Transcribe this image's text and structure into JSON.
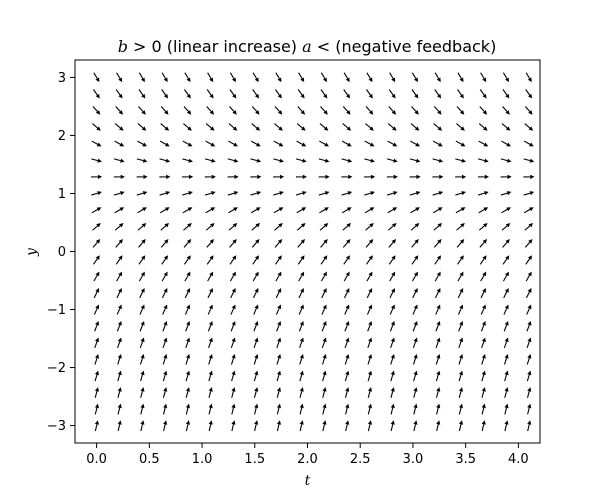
{
  "chart_data": {
    "type": "quiver",
    "title": "b > 0 (linear increase) a < (negative feedback)",
    "title_parts": [
      {
        "text": "b",
        "italic": true
      },
      {
        "text": " > 0 (linear increase) ",
        "italic": false
      },
      {
        "text": "a",
        "italic": true
      },
      {
        "text": " < (negative feedback)",
        "italic": false
      }
    ],
    "xlabel": "t",
    "ylabel": "y",
    "xlim": [
      -0.205,
      4.205
    ],
    "ylim": [
      -3.3,
      3.3
    ],
    "xticks": [
      0.0,
      0.5,
      1.0,
      1.5,
      2.0,
      2.5,
      3.0,
      3.5,
      4.0
    ],
    "xtick_labels": [
      "0.0",
      "0.5",
      "1.0",
      "1.5",
      "2.0",
      "2.5",
      "3.0",
      "3.5",
      "4.0"
    ],
    "yticks": [
      -3,
      -2,
      -1,
      0,
      1,
      2,
      3
    ],
    "ytick_labels": [
      "−3",
      "−2",
      "−1",
      "0",
      "1",
      "2",
      "3"
    ],
    "grid": false,
    "legend": "none",
    "field": {
      "t_start": 0.0,
      "t_end": 4.1,
      "t_count": 20,
      "y_start": -3.0,
      "y_end": 3.0,
      "y_count": 22,
      "slope_a": 1.0,
      "slope_b": 1.3,
      "arrow_color": "#000000"
    }
  }
}
